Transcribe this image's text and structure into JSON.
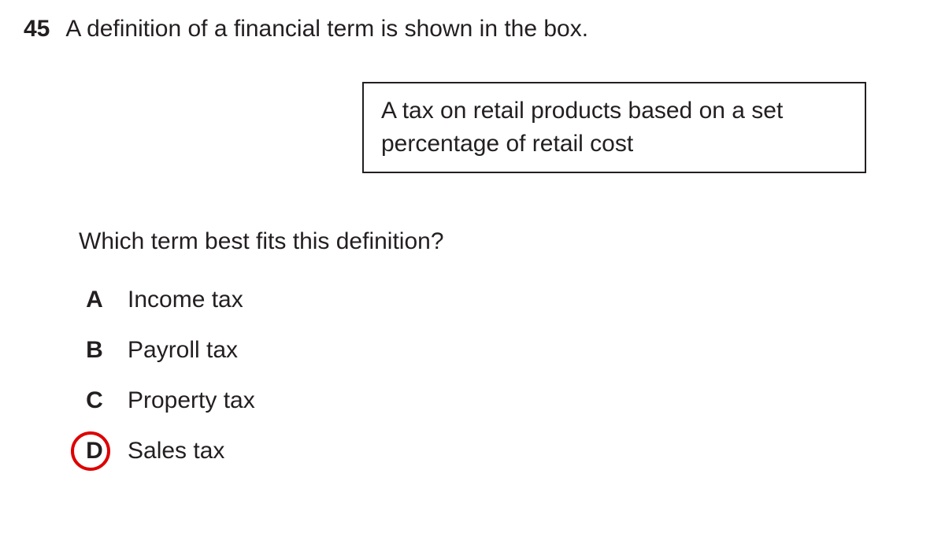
{
  "question": {
    "number": "45",
    "stem": "A definition of a financial term is shown in the box.",
    "definition": "A tax on retail products based on a set percentage of retail cost",
    "followup": "Which term best fits this definition?",
    "choices": [
      {
        "letter": "A",
        "text": "Income tax",
        "circled": false
      },
      {
        "letter": "B",
        "text": "Payroll tax",
        "circled": false
      },
      {
        "letter": "C",
        "text": "Property tax",
        "circled": false
      },
      {
        "letter": "D",
        "text": "Sales tax",
        "circled": true
      }
    ]
  },
  "colors": {
    "text": "#231f20",
    "circle": "#dd0000",
    "background": "#ffffff"
  }
}
